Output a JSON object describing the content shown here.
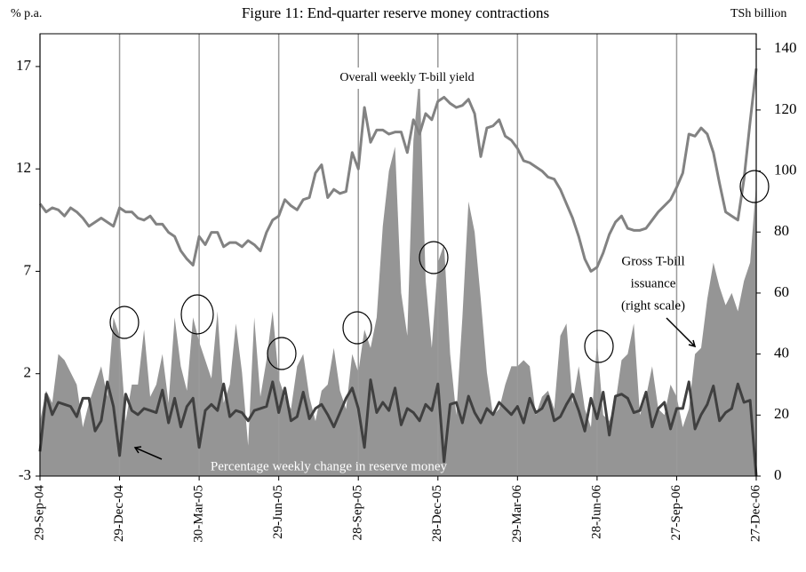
{
  "chart_data": {
    "type": "line",
    "title": "Figure 11: End-quarter reserve money contractions",
    "ylabel": "% p.a.",
    "y2label": "TSh billion",
    "categories": [
      "29-Sep-04",
      null,
      null,
      null,
      null,
      null,
      null,
      null,
      null,
      null,
      null,
      null,
      null,
      "29-Dec-04",
      null,
      null,
      null,
      null,
      null,
      null,
      null,
      null,
      null,
      null,
      null,
      null,
      "30-Mar-05",
      null,
      null,
      null,
      null,
      null,
      null,
      null,
      null,
      null,
      null,
      null,
      null,
      "29-Jun-05",
      null,
      null,
      null,
      null,
      null,
      null,
      null,
      null,
      null,
      null,
      null,
      null,
      "28-Sep-05",
      null,
      null,
      null,
      null,
      null,
      null,
      null,
      null,
      null,
      null,
      null,
      null,
      "28-Dec-05",
      null,
      null,
      null,
      null,
      null,
      null,
      null,
      null,
      null,
      null,
      null,
      null,
      "29-Mar-06",
      null,
      null,
      null,
      null,
      null,
      null,
      null,
      null,
      null,
      null,
      null,
      null,
      "28-Jun-06",
      null,
      null,
      null,
      null,
      null,
      null,
      null,
      null,
      null,
      null,
      null,
      null,
      "27-Sep-06",
      null,
      null,
      null,
      null,
      null,
      null,
      null,
      null,
      null,
      null,
      null,
      null,
      "27-Dec-06"
    ],
    "ylim": [
      -3,
      18.6
    ],
    "yticks": [
      -3,
      2,
      7,
      12,
      17
    ],
    "y2lim": [
      0,
      145
    ],
    "y2ticks": [
      0,
      20,
      40,
      60,
      80,
      100,
      120,
      140
    ],
    "grid": "x",
    "series": [
      {
        "label_lines": [
          "Gross T-bill",
          "issuance",
          "(right scale)"
        ],
        "kind": "area",
        "axis": "y2",
        "color": "#959595",
        "values": [
          18,
          28,
          24,
          40,
          38,
          34,
          30,
          16,
          24,
          30,
          36,
          26,
          52,
          46,
          18,
          30,
          30,
          48,
          26,
          30,
          40,
          24,
          52,
          36,
          28,
          52,
          44,
          38,
          32,
          54,
          24,
          30,
          50,
          34,
          10,
          52,
          26,
          38,
          54,
          32,
          26,
          22,
          36,
          40,
          26,
          18,
          28,
          30,
          42,
          28,
          22,
          40,
          34,
          48,
          42,
          52,
          82,
          100,
          108,
          60,
          46,
          110,
          132,
          64,
          42,
          70,
          76,
          40,
          20,
          52,
          90,
          80,
          58,
          34,
          20,
          22,
          30,
          36,
          36,
          38,
          36,
          20,
          26,
          28,
          22,
          46,
          50,
          24,
          36,
          22,
          16,
          44,
          20,
          18,
          24,
          38,
          40,
          50,
          20,
          26,
          36,
          22,
          20,
          30,
          26,
          16,
          22,
          40,
          42,
          58,
          70,
          62,
          56,
          60,
          54,
          64,
          70,
          96
        ]
      },
      {
        "name": "Overall weekly T-bill yield",
        "kind": "line",
        "color": "#828282",
        "values": [
          10.3,
          9.9,
          10.1,
          10.0,
          9.7,
          10.1,
          9.9,
          9.6,
          9.2,
          9.4,
          9.6,
          9.4,
          9.2,
          10.1,
          9.9,
          9.9,
          9.6,
          9.5,
          9.7,
          9.3,
          9.3,
          8.9,
          8.7,
          8.0,
          7.6,
          7.3,
          8.7,
          8.3,
          8.9,
          8.9,
          8.2,
          8.4,
          8.4,
          8.2,
          8.5,
          8.3,
          8.0,
          8.9,
          9.5,
          9.7,
          10.5,
          10.2,
          10.0,
          10.5,
          10.6,
          11.8,
          12.2,
          10.6,
          11.0,
          10.8,
          10.9,
          12.8,
          12.0,
          15.0,
          13.3,
          13.9,
          13.9,
          13.7,
          13.8,
          13.8,
          12.8,
          14.4,
          13.7,
          14.7,
          14.4,
          15.3,
          15.5,
          15.2,
          15.0,
          15.1,
          15.4,
          14.7,
          12.6,
          14.0,
          14.1,
          14.4,
          13.6,
          13.4,
          13.0,
          12.4,
          12.3,
          12.1,
          11.9,
          11.6,
          11.5,
          11.0,
          10.3,
          9.6,
          8.7,
          7.6,
          7.0,
          7.2,
          7.9,
          8.8,
          9.4,
          9.7,
          9.1,
          9.0,
          9.0,
          9.1,
          9.5,
          9.9,
          10.2,
          10.5,
          11.1,
          11.8,
          13.7,
          13.6,
          14.0,
          13.7,
          12.8,
          11.3,
          9.9,
          9.7,
          9.5,
          11.5,
          14.3,
          16.9
        ]
      },
      {
        "name": "Percentage weekly change in reserve money",
        "kind": "line",
        "color": "#404040",
        "values": [
          -1.8,
          1.0,
          0.0,
          0.6,
          0.5,
          0.4,
          -0.1,
          0.8,
          0.8,
          -0.8,
          -0.3,
          1.6,
          0.4,
          -2.0,
          1.0,
          0.2,
          0.0,
          0.3,
          0.2,
          0.1,
          1.2,
          -0.4,
          0.8,
          -0.6,
          0.4,
          0.8,
          -1.6,
          0.2,
          0.5,
          0.2,
          1.5,
          -0.1,
          0.2,
          0.1,
          -0.3,
          0.2,
          0.3,
          0.4,
          1.6,
          0.1,
          1.3,
          -0.3,
          -0.1,
          1.1,
          -0.2,
          0.3,
          0.5,
          0.0,
          -0.6,
          0.1,
          0.8,
          1.3,
          0.3,
          -1.6,
          1.7,
          0.1,
          0.6,
          0.2,
          1.3,
          -0.5,
          0.3,
          0.1,
          -0.3,
          0.5,
          0.2,
          1.5,
          -2.3,
          0.5,
          0.6,
          -0.4,
          0.9,
          0.1,
          -0.4,
          0.3,
          0.0,
          0.6,
          0.3,
          0.0,
          0.4,
          -0.4,
          0.8,
          0.1,
          0.3,
          0.9,
          -0.3,
          -0.1,
          0.5,
          1.0,
          0.2,
          -0.8,
          0.8,
          -0.2,
          1.1,
          -1.0,
          0.9,
          1.0,
          0.8,
          0.1,
          0.2,
          1.1,
          -0.6,
          0.3,
          0.6,
          -0.7,
          0.3,
          0.3,
          1.6,
          -0.7,
          0.0,
          0.5,
          1.4,
          -0.3,
          0.1,
          0.3,
          1.5,
          0.6,
          0.7,
          -3.0
        ]
      }
    ]
  }
}
